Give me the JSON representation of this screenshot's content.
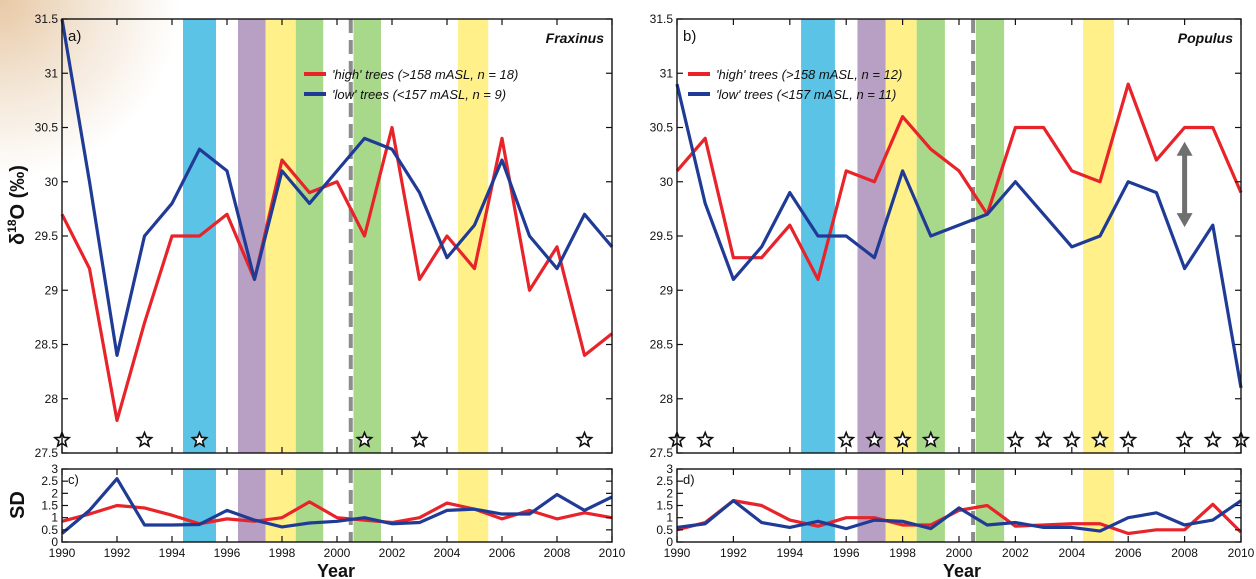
{
  "colors": {
    "high": "#e8232a",
    "low": "#1f3b96",
    "blue_band": "#5bc3e5",
    "purple_band": "#b7a0c4",
    "yellow_band": "#fff08a",
    "green_band": "#a8d98b",
    "dashed_line": "#8c8c8c",
    "arrow": "#6f6f6f"
  },
  "labels": {
    "ylabel_main": "δ18O (‰)",
    "ylabel_sd": "SD",
    "xlabel": "Year"
  },
  "bands": [
    {
      "type": "blue",
      "from": 1994.4,
      "to": 1995.6
    },
    {
      "type": "purple",
      "from": 1996.4,
      "to": 1997.4
    },
    {
      "type": "yellow",
      "from": 1997.4,
      "to": 1998.5
    },
    {
      "type": "green",
      "from": 1998.5,
      "to": 1999.5
    },
    {
      "type": "green",
      "from": 2000.6,
      "to": 2001.6
    },
    {
      "type": "yellow",
      "from": 2004.4,
      "to": 2005.5
    }
  ],
  "dashed_year": 2000.5,
  "chart_data": [
    {
      "type": "line",
      "panel": "a)",
      "title": "Fraxinus",
      "xlim": [
        1990,
        2010
      ],
      "ylim": [
        27.5,
        31.5
      ],
      "x_ticks": [
        1990,
        1992,
        1994,
        1996,
        1998,
        2000,
        2002,
        2004,
        2006,
        2008,
        2010
      ],
      "y_ticks": [
        27.5,
        28,
        28.5,
        29,
        29.5,
        30,
        30.5,
        31,
        31.5
      ],
      "x": [
        1990,
        1991,
        1992,
        1993,
        1994,
        1995,
        1996,
        1997,
        1998,
        1999,
        2000,
        2001,
        2002,
        2003,
        2004,
        2005,
        2006,
        2007,
        2008,
        2009,
        2010
      ],
      "series": [
        {
          "name": "'high' trees (>158 mASL, n = 18)",
          "color_key": "high",
          "values": [
            29.7,
            29.2,
            27.8,
            28.7,
            29.5,
            29.5,
            29.7,
            29.1,
            30.2,
            29.9,
            30.0,
            29.5,
            30.5,
            29.1,
            29.5,
            29.2,
            30.4,
            29.0,
            29.4,
            28.4,
            28.6
          ]
        },
        {
          "name": "'low' trees (<157 mASL, n = 9)",
          "color_key": "low",
          "values": [
            31.5,
            30.0,
            28.4,
            29.5,
            29.8,
            30.3,
            30.1,
            29.1,
            30.1,
            29.8,
            30.1,
            30.4,
            30.3,
            29.9,
            29.3,
            29.6,
            30.2,
            29.5,
            29.2,
            29.7,
            29.4
          ]
        }
      ],
      "star_years": [
        1990,
        1993,
        1995,
        2001,
        2003,
        2009
      ]
    },
    {
      "type": "line",
      "panel": "b)",
      "title": "Populus",
      "xlim": [
        1990,
        2010
      ],
      "ylim": [
        27.5,
        31.5
      ],
      "x_ticks": [
        1990,
        1992,
        1994,
        1996,
        1998,
        2000,
        2002,
        2004,
        2006,
        2008,
        2010
      ],
      "y_ticks": [
        27.5,
        28,
        28.5,
        29,
        29.5,
        30,
        30.5,
        31,
        31.5
      ],
      "x": [
        1990,
        1991,
        1992,
        1993,
        1994,
        1995,
        1996,
        1997,
        1998,
        1999,
        2000,
        2001,
        2002,
        2003,
        2004,
        2005,
        2006,
        2007,
        2008,
        2009,
        2010
      ],
      "series": [
        {
          "name": "'high' trees (>158 mASL, n = 12)",
          "color_key": "high",
          "values": [
            30.1,
            30.4,
            29.3,
            29.3,
            29.6,
            29.1,
            30.1,
            30.0,
            30.6,
            30.3,
            30.1,
            29.7,
            30.5,
            30.5,
            30.1,
            30.0,
            30.9,
            30.2,
            30.5,
            30.5,
            29.9
          ]
        },
        {
          "name": "'low' trees (<157 mASL, n = 11)",
          "color_key": "low",
          "values": [
            30.9,
            29.8,
            29.1,
            29.4,
            29.9,
            29.5,
            29.5,
            29.3,
            30.1,
            29.5,
            29.6,
            29.7,
            30.0,
            29.7,
            29.4,
            29.5,
            30.0,
            29.9,
            29.2,
            29.6,
            28.1
          ]
        }
      ],
      "star_years": [
        1990,
        1991,
        1996,
        1997,
        1998,
        1999,
        2002,
        2003,
        2004,
        2005,
        2006,
        2008,
        2009,
        2010
      ],
      "double_arrow": {
        "x": 2008,
        "from": 30.35,
        "to": 29.6
      }
    },
    {
      "type": "line",
      "panel": "c)",
      "xlim": [
        1990,
        2010
      ],
      "ylim": [
        0,
        3
      ],
      "x_ticks": [
        1990,
        1992,
        1994,
        1996,
        1998,
        2000,
        2002,
        2004,
        2006,
        2008,
        2010
      ],
      "x_tick_labels": [
        "1990",
        "1992",
        "1994",
        "1996",
        "1998",
        "2000",
        "2002",
        "2004",
        "2006",
        "2008",
        "2010"
      ],
      "y_ticks": [
        0,
        0.5,
        1,
        1.5,
        2,
        2.5,
        3
      ],
      "y_tick_labels": [
        "0",
        "0.5",
        "1",
        "1.5",
        "2",
        "2.5",
        "3"
      ],
      "x": [
        1990,
        1991,
        1992,
        1993,
        1994,
        1995,
        1996,
        1997,
        1998,
        1999,
        2000,
        2001,
        2002,
        2003,
        2004,
        2005,
        2006,
        2007,
        2008,
        2009,
        2010
      ],
      "series": [
        {
          "color_key": "high",
          "values": [
            0.85,
            1.15,
            1.5,
            1.4,
            1.1,
            0.75,
            0.95,
            0.85,
            1.0,
            1.65,
            1.0,
            0.9,
            0.8,
            1.0,
            1.6,
            1.35,
            0.95,
            1.3,
            0.95,
            1.2,
            1.0
          ]
        },
        {
          "color_key": "low",
          "values": [
            0.35,
            1.3,
            2.6,
            0.7,
            0.7,
            0.72,
            1.3,
            0.9,
            0.62,
            0.78,
            0.85,
            1.0,
            0.75,
            0.8,
            1.3,
            1.35,
            1.15,
            1.15,
            1.95,
            1.3,
            1.85
          ]
        }
      ]
    },
    {
      "type": "line",
      "panel": "d)",
      "xlim": [
        1990,
        2010
      ],
      "ylim": [
        0,
        3
      ],
      "x_ticks": [
        1990,
        1992,
        1994,
        1996,
        1998,
        2000,
        2002,
        2004,
        2006,
        2008,
        2010
      ],
      "x_tick_labels": [
        "1990",
        "1992",
        "1994",
        "1996",
        "1998",
        "2000",
        "2002",
        "2004",
        "2006",
        "2008",
        "2010"
      ],
      "y_ticks": [
        0,
        0.5,
        1,
        1.5,
        2,
        2.5,
        3
      ],
      "y_tick_labels": [
        "0",
        "0.5",
        "1",
        "1.5",
        "2",
        "2.5",
        "3"
      ],
      "x": [
        1990,
        1991,
        1992,
        1993,
        1994,
        1995,
        1996,
        1997,
        1998,
        1999,
        2000,
        2001,
        2002,
        2003,
        2004,
        2005,
        2006,
        2007,
        2008,
        2009,
        2010
      ],
      "series": [
        {
          "color_key": "high",
          "values": [
            0.5,
            0.8,
            1.7,
            1.5,
            0.9,
            0.65,
            1.0,
            1.0,
            0.7,
            0.7,
            1.3,
            1.5,
            0.65,
            0.7,
            0.75,
            0.75,
            0.35,
            0.5,
            0.5,
            1.55,
            0.4
          ]
        },
        {
          "color_key": "low",
          "values": [
            0.6,
            0.75,
            1.7,
            0.8,
            0.6,
            0.85,
            0.55,
            0.9,
            0.85,
            0.55,
            1.4,
            0.7,
            0.8,
            0.6,
            0.6,
            0.45,
            1.0,
            1.2,
            0.7,
            0.9,
            1.7
          ]
        }
      ]
    }
  ]
}
